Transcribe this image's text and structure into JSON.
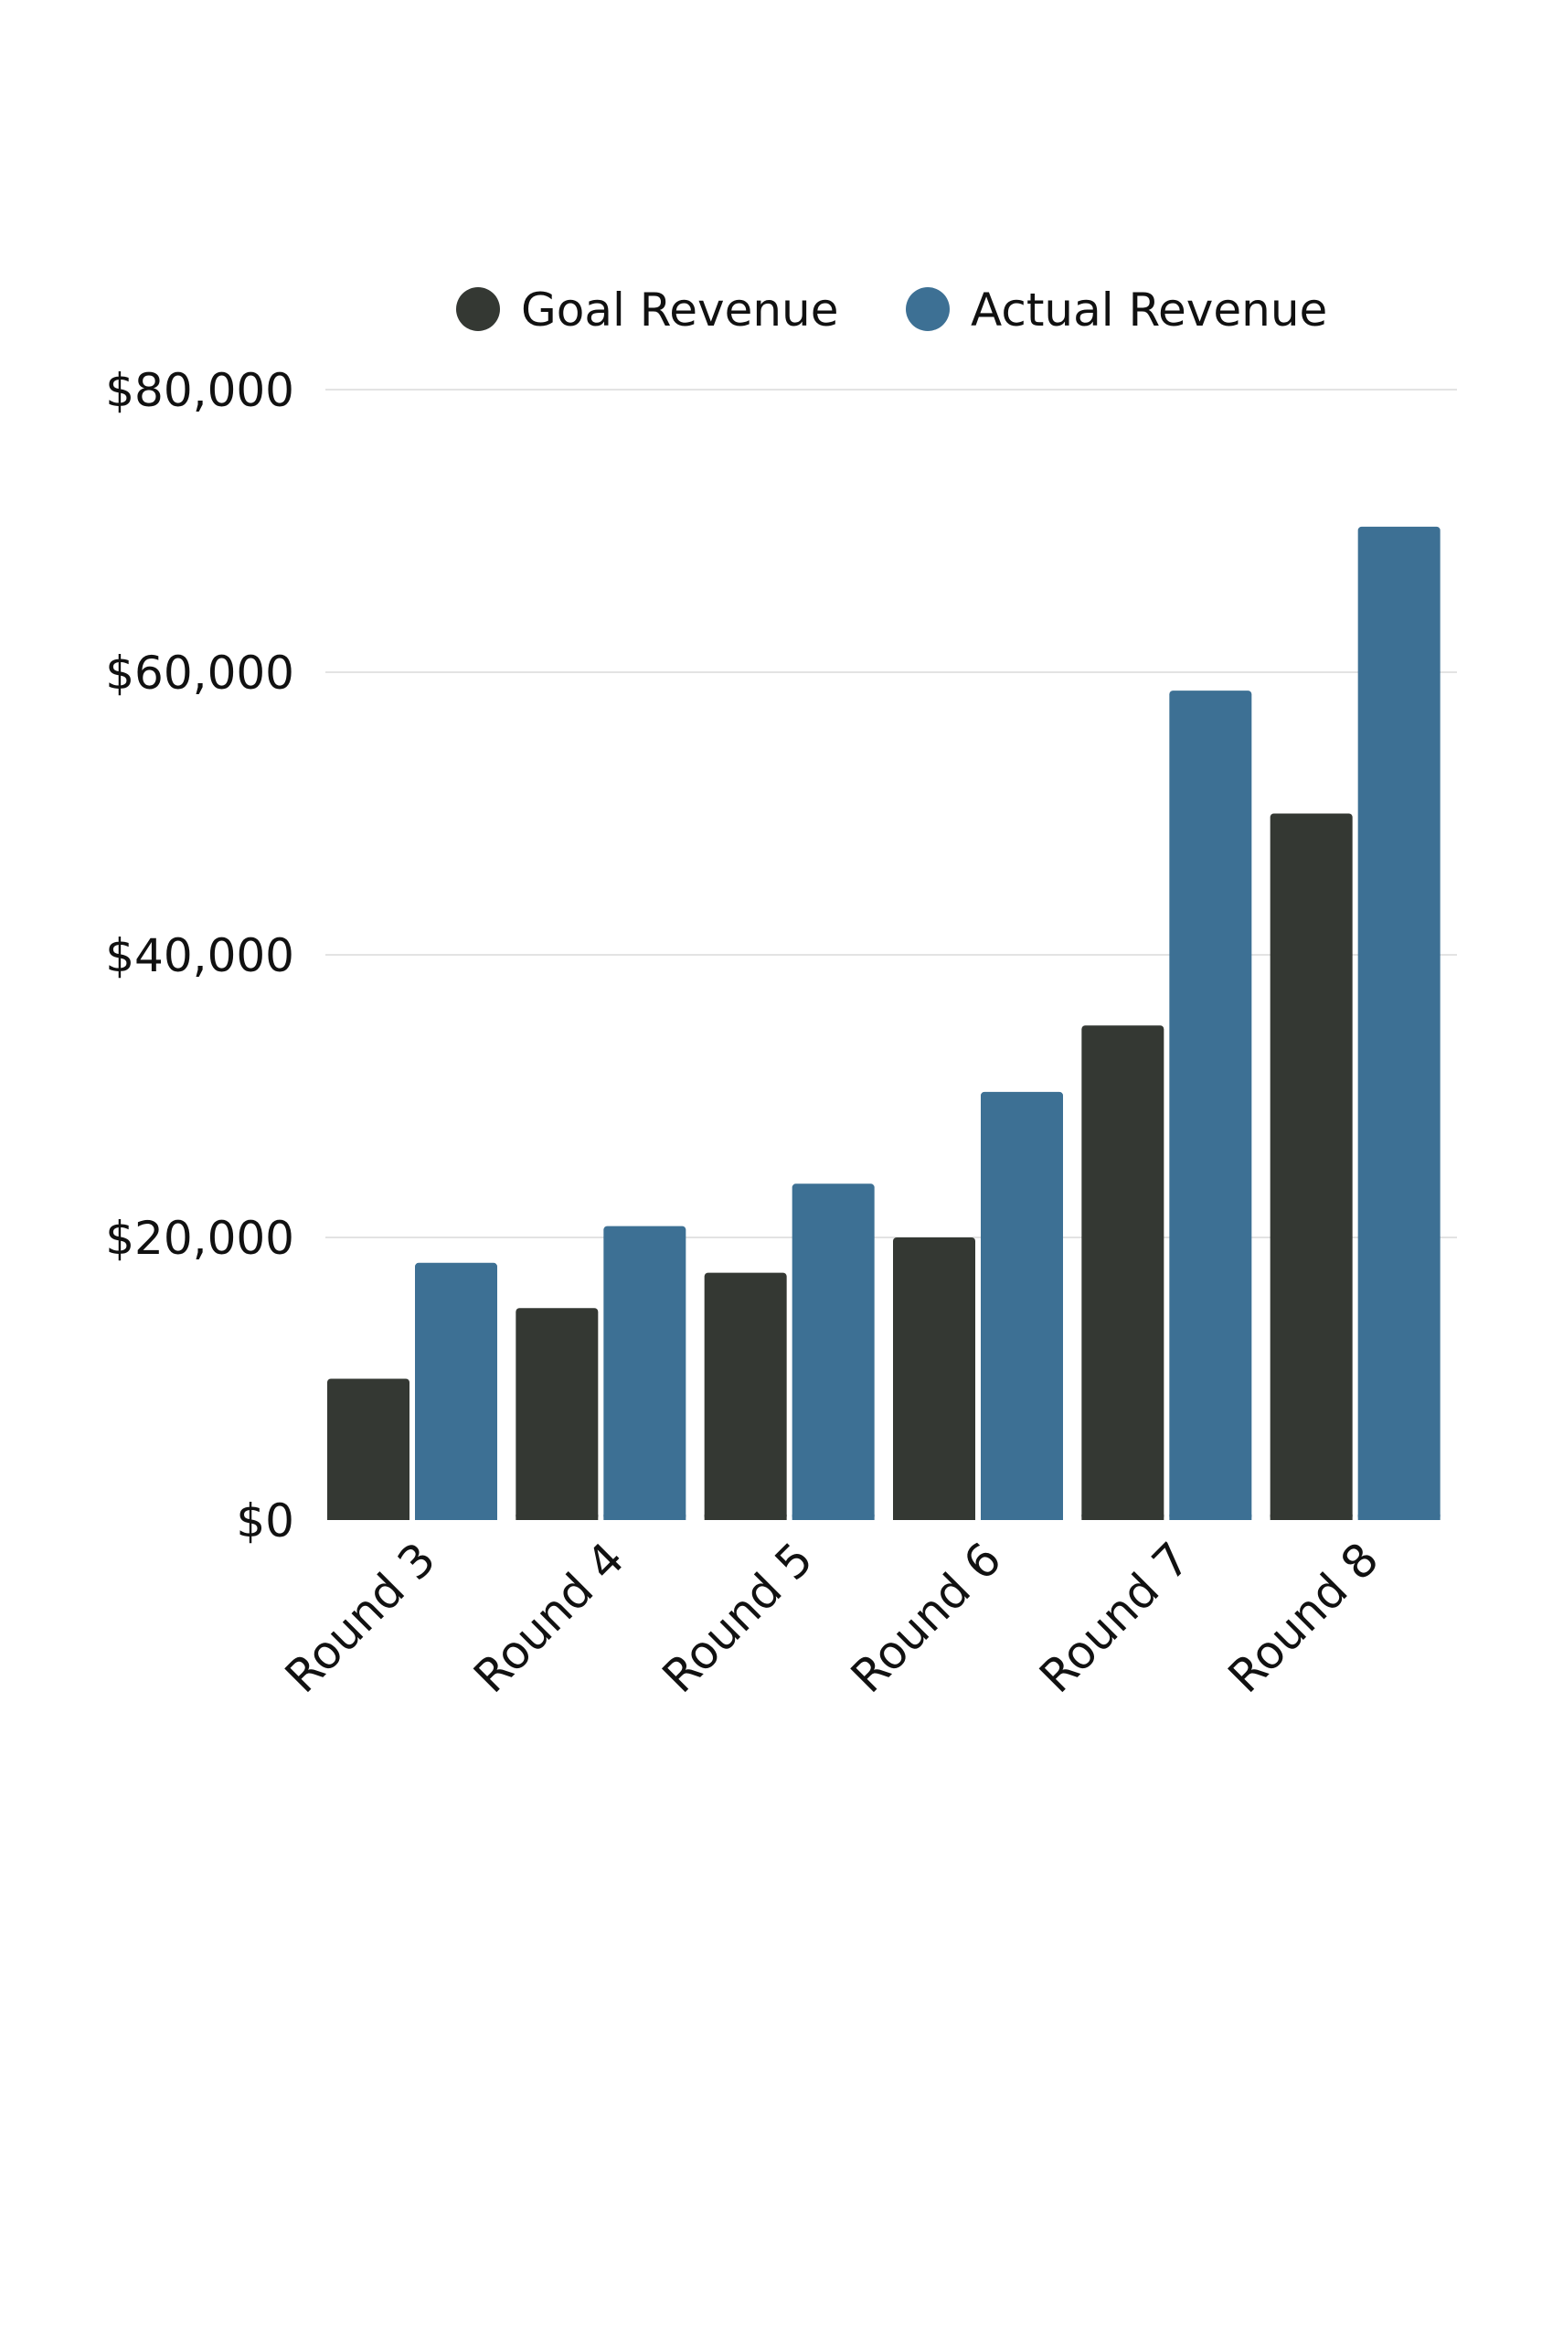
{
  "chart_data": {
    "type": "bar",
    "categories": [
      "Round 3",
      "Round 4",
      "Round 5",
      "Round 6",
      "Round 7",
      "Round 8"
    ],
    "series": [
      {
        "name": "Goal Revenue",
        "color": "#343833",
        "values": [
          10000,
          15000,
          17500,
          20000,
          35000,
          50000
        ]
      },
      {
        "name": "Actual Revenue",
        "color": "#3d7094",
        "values": [
          18200,
          20800,
          23800,
          30300,
          58700,
          70300
        ]
      }
    ],
    "ylim": [
      0,
      80000
    ],
    "yticks": [
      0,
      20000,
      40000,
      60000,
      80000
    ],
    "ytick_labels": [
      "$0",
      "$20,000",
      "$40,000",
      "$60,000",
      "$80,000"
    ],
    "title": "",
    "xlabel": "",
    "ylabel": "",
    "grid": true,
    "legend_position": "top-center",
    "gridline_color": "#e3e3e3",
    "text_color": "#111111"
  }
}
